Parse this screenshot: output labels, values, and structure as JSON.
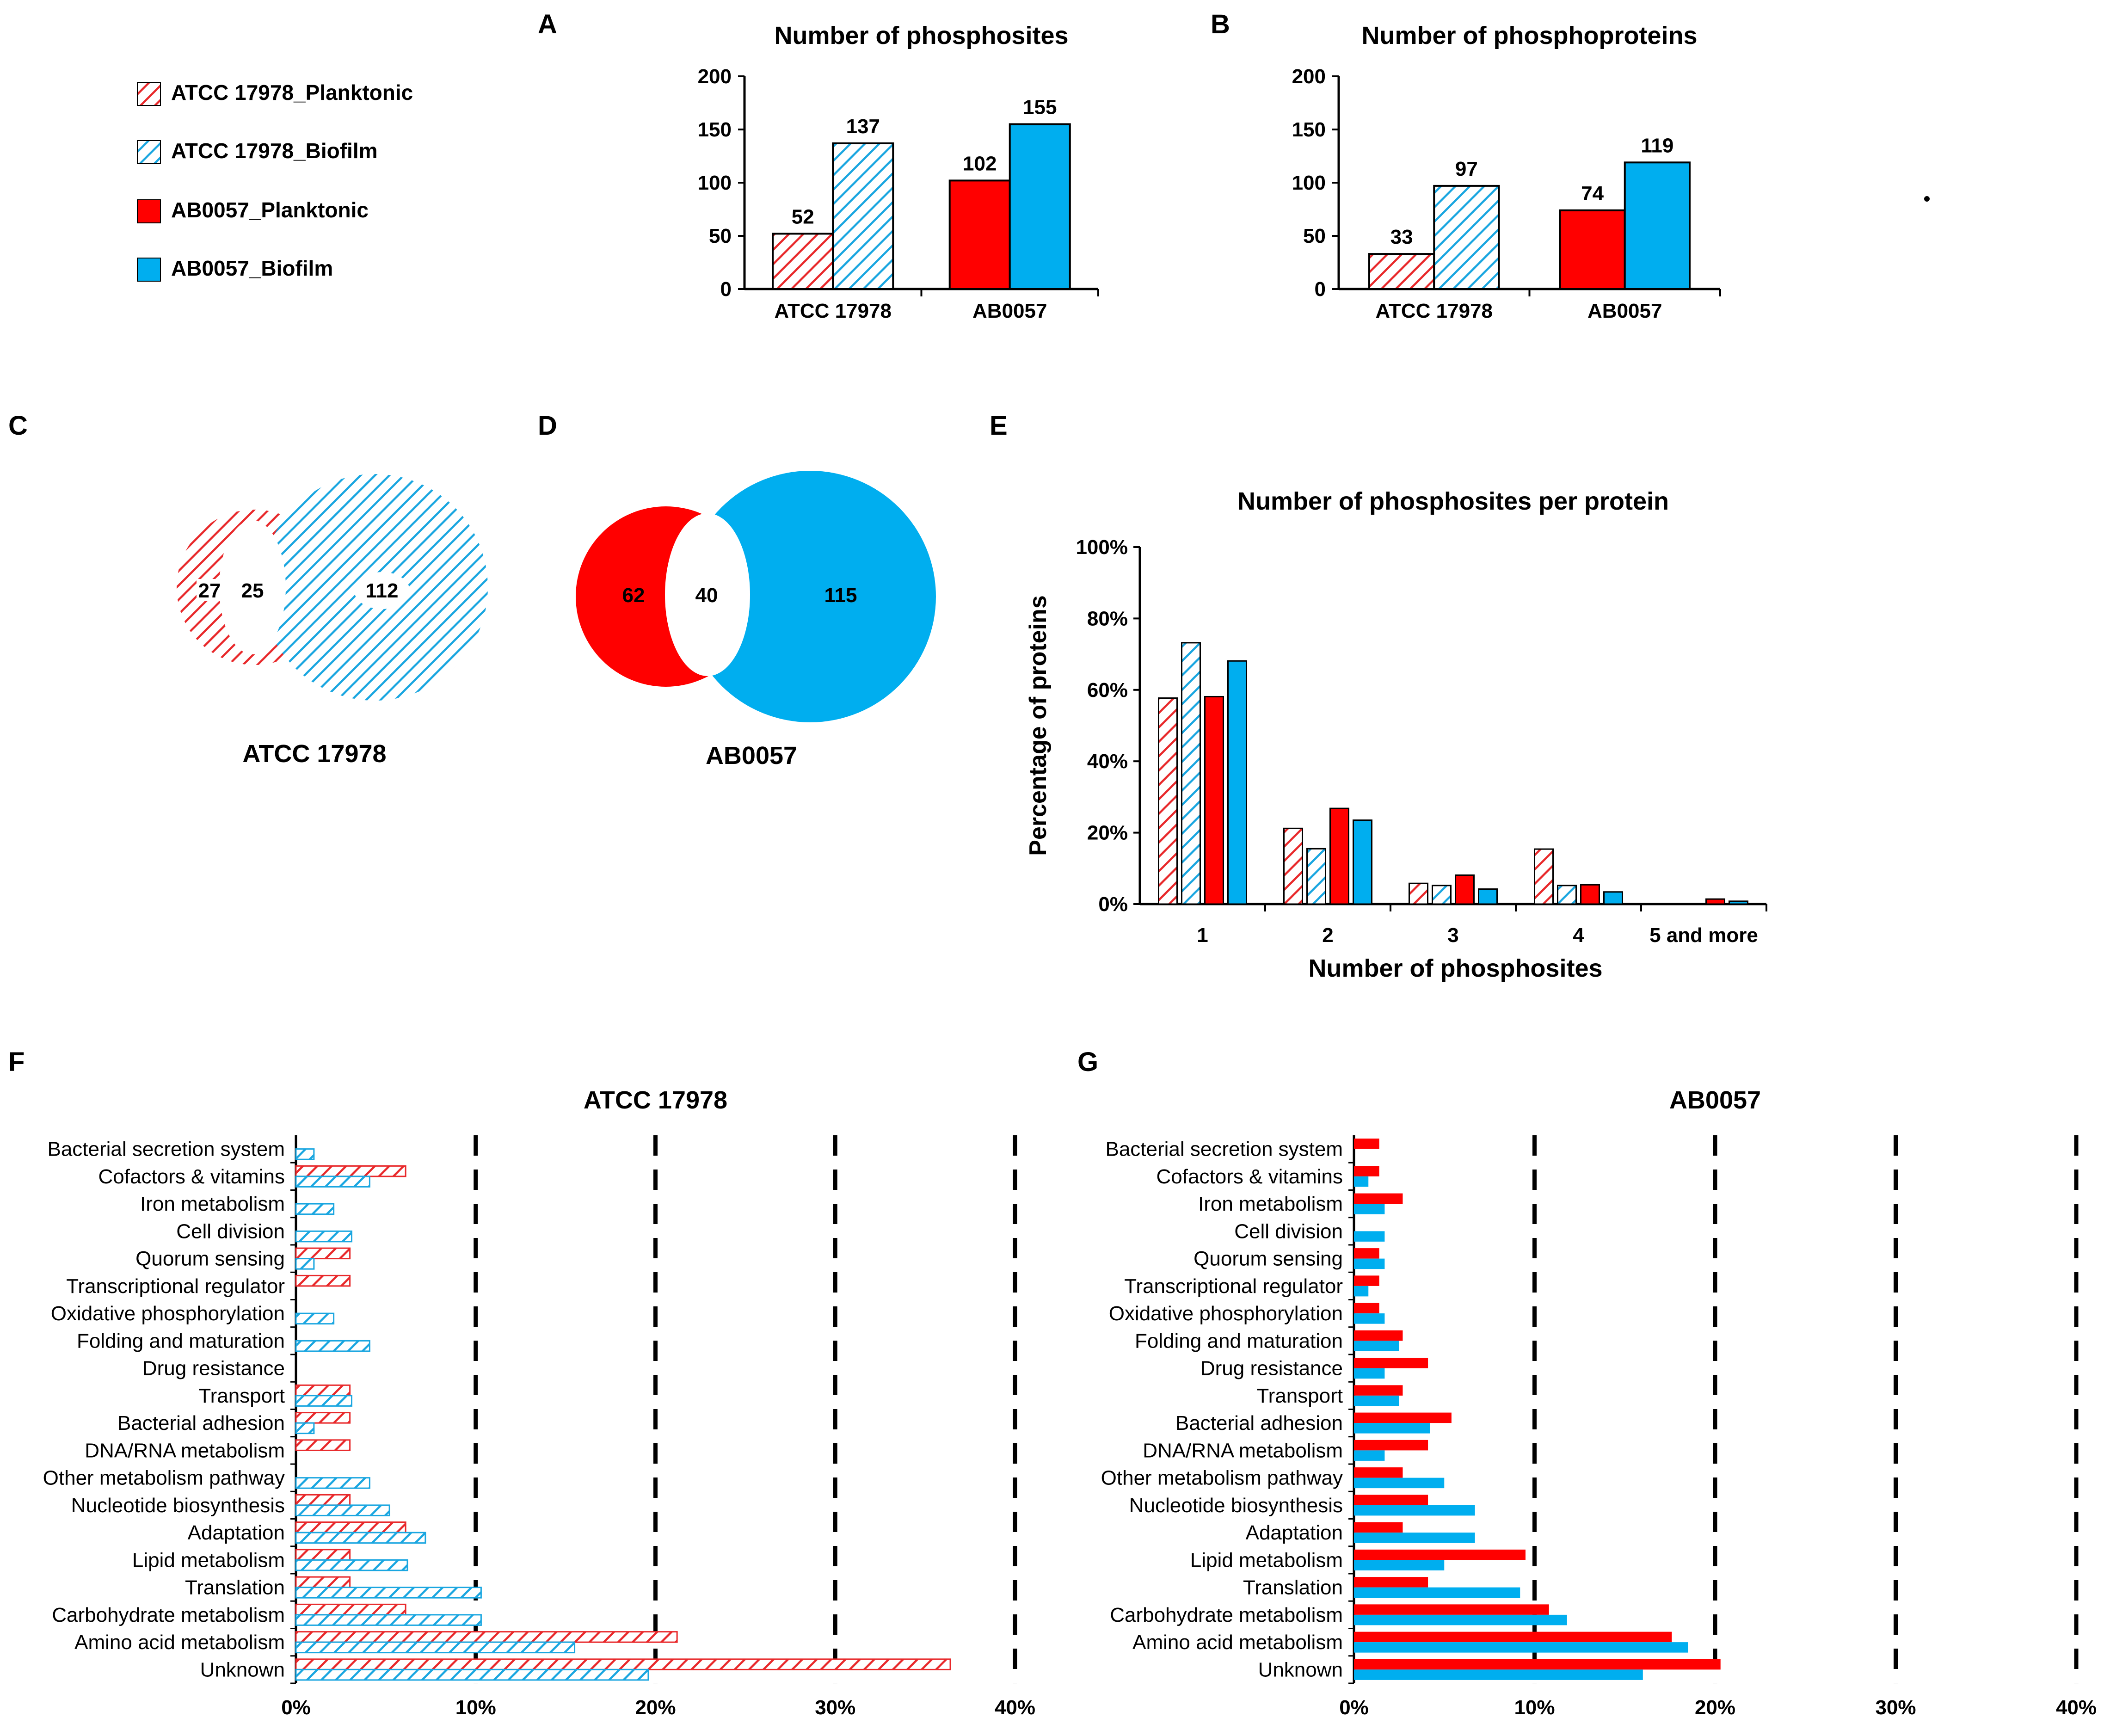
{
  "colors": {
    "red": "#ff0000",
    "blue": "#00aeef",
    "red_hatch": "#e8292b",
    "blue_hatch": "#1aa6e0"
  },
  "legend": {
    "items": [
      {
        "label": "ATCC 17978_Planktonic",
        "color": "#e8292b",
        "pattern": "hatched"
      },
      {
        "label": "ATCC 17978_Biofilm",
        "color": "#1aa6e0",
        "pattern": "hatched"
      },
      {
        "label": "AB0057_Planktonic",
        "color": "#ff0000",
        "pattern": "solid"
      },
      {
        "label": "AB0057_Biofilm",
        "color": "#00aeef",
        "pattern": "solid"
      }
    ]
  },
  "panels": {
    "A": "A",
    "B": "B",
    "C": "C",
    "D": "D",
    "E": "E",
    "F": "F",
    "G": "G"
  },
  "chart_data": [
    {
      "id": "A",
      "type": "bar",
      "title": "Number of phosphosites",
      "categories": [
        "ATCC 17978",
        "AB0057"
      ],
      "series": [
        {
          "name": "Planktonic",
          "values": [
            52,
            102
          ]
        },
        {
          "name": "Biofilm",
          "values": [
            137,
            155
          ]
        }
      ],
      "data_labels": [
        "52",
        "137",
        "102",
        "155"
      ],
      "ylim": [
        0,
        200
      ],
      "yticks": [
        0,
        50,
        100,
        150,
        200
      ],
      "ytick_labels": [
        "0",
        "50",
        "100",
        "150",
        "200"
      ]
    },
    {
      "id": "B",
      "type": "bar",
      "title": "Number of phosphoproteins",
      "categories": [
        "ATCC 17978",
        "AB0057"
      ],
      "series": [
        {
          "name": "Planktonic",
          "values": [
            33,
            74
          ]
        },
        {
          "name": "Biofilm",
          "values": [
            97,
            119
          ]
        }
      ],
      "data_labels": [
        "33",
        "97",
        "74",
        "119"
      ],
      "ylim": [
        0,
        200
      ],
      "yticks": [
        0,
        50,
        100,
        150,
        200
      ],
      "ytick_labels": [
        "0",
        "50",
        "100",
        "150",
        "200"
      ]
    },
    {
      "id": "C",
      "type": "venn",
      "label": "ATCC 17978",
      "sets": {
        "planktonic_only": "27",
        "shared": "25",
        "biofilm_only": "112"
      }
    },
    {
      "id": "D",
      "type": "venn",
      "label": "AB0057",
      "sets": {
        "planktonic_only": "62",
        "shared": "40",
        "biofilm_only": "115"
      }
    },
    {
      "id": "E",
      "type": "bar",
      "title": "Number of phosphosites per protein",
      "xlabel": "Number of phosphosites",
      "ylabel": "Percentage of proteins",
      "categories": [
        "1",
        "2",
        "3",
        "4",
        "5 and more"
      ],
      "series": [
        {
          "name": "ATCC 17978_Planktonic",
          "values": [
            57.7,
            21.2,
            5.8,
            15.4,
            0
          ]
        },
        {
          "name": "ATCC 17978_Biofilm",
          "values": [
            73.2,
            15.5,
            5.2,
            5.2,
            0
          ]
        },
        {
          "name": "AB0057_Planktonic",
          "values": [
            58.1,
            26.8,
            8.1,
            5.4,
            1.4
          ]
        },
        {
          "name": "AB0057_Biofilm",
          "values": [
            68.1,
            23.5,
            4.2,
            3.4,
            0.8
          ]
        }
      ],
      "ylim": [
        0,
        100
      ],
      "yticks": [
        0,
        20,
        40,
        60,
        80,
        100
      ],
      "ytick_labels": [
        "0%",
        "20%",
        "40%",
        "60%",
        "80%",
        "100%"
      ]
    },
    {
      "id": "F",
      "type": "hbar",
      "title": "ATCC 17978",
      "categories": [
        "Bacterial secretion system",
        "Cofactors & vitamins",
        "Iron metabolism",
        "Cell division",
        "Quorum sensing",
        "Transcriptional regulator",
        "Oxidative phosphorylation",
        "Folding and maturation",
        "Drug resistance",
        "Transport",
        "Bacterial adhesion",
        "DNA/RNA metabolism",
        "Other metabolism pathway",
        "Nucleotide biosynthesis",
        "Adaptation",
        "Lipid metabolism",
        "Translation",
        "Carbohydrate metabolism",
        "Amino acid metabolism",
        "Unknown"
      ],
      "series": [
        {
          "name": "ATCC 17978_Planktonic",
          "values": [
            0,
            6.1,
            0,
            0,
            3.0,
            3.0,
            0,
            0,
            0,
            3.0,
            3.0,
            3.0,
            0,
            3.0,
            6.1,
            3.0,
            3.0,
            6.1,
            21.2,
            36.4
          ]
        },
        {
          "name": "ATCC 17978_Biofilm",
          "values": [
            1.0,
            4.1,
            2.1,
            3.1,
            1.0,
            0,
            2.1,
            4.1,
            0,
            3.1,
            1.0,
            0,
            4.1,
            5.2,
            7.2,
            6.2,
            10.3,
            10.3,
            15.5,
            19.6
          ]
        }
      ],
      "xlim": [
        0,
        40
      ],
      "xticks": [
        0,
        10,
        20,
        30,
        40
      ],
      "xtick_labels": [
        "0%",
        "10%",
        "20%",
        "30%",
        "40%"
      ]
    },
    {
      "id": "G",
      "type": "hbar",
      "title": "AB0057",
      "categories": [
        "Bacterial secretion system",
        "Cofactors & vitamins",
        "Iron metabolism",
        "Cell division",
        "Quorum sensing",
        "Transcriptional regulator",
        "Oxidative phosphorylation",
        "Folding and maturation",
        "Drug resistance",
        "Transport",
        "Bacterial adhesion",
        "DNA/RNA metabolism",
        "Other metabolism pathway",
        "Nucleotide biosynthesis",
        "Adaptation",
        "Lipid metabolism",
        "Translation",
        "Carbohydrate metabolism",
        "Amino acid metabolism",
        "Unknown"
      ],
      "series": [
        {
          "name": "AB0057_Planktonic",
          "values": [
            1.4,
            1.4,
            2.7,
            0,
            1.4,
            1.4,
            1.4,
            2.7,
            4.1,
            2.7,
            5.4,
            4.1,
            2.7,
            4.1,
            2.7,
            9.5,
            4.1,
            10.8,
            17.6,
            20.3
          ]
        },
        {
          "name": "AB0057_Biofilm",
          "values": [
            0,
            0.8,
            1.7,
            1.7,
            1.7,
            0.8,
            1.7,
            2.5,
            1.7,
            2.5,
            4.2,
            1.7,
            5.0,
            6.7,
            6.7,
            5.0,
            9.2,
            11.8,
            18.5,
            16.0
          ]
        }
      ],
      "xlim": [
        0,
        40
      ],
      "xticks": [
        0,
        10,
        20,
        30,
        40
      ],
      "xtick_labels": [
        "0%",
        "10%",
        "20%",
        "30%",
        "40%"
      ]
    }
  ]
}
